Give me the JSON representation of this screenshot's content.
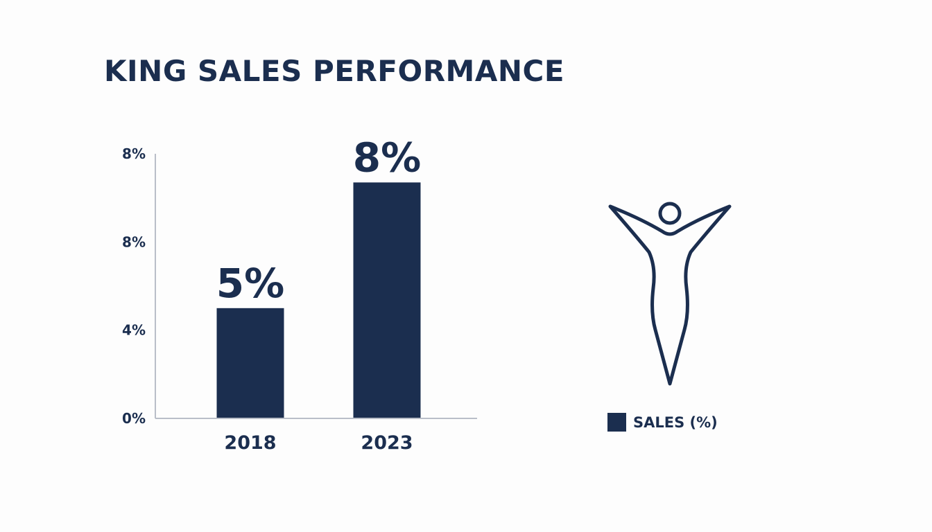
{
  "chart_data": {
    "type": "bar",
    "title": "KING SALES PERFORMANCE",
    "categories": [
      "2018",
      "2023"
    ],
    "series": [
      {
        "name": "SALES (%)",
        "values": [
          5,
          8
        ],
        "data_labels": [
          "5%",
          "8%"
        ],
        "color": "#1b2e4f"
      }
    ],
    "y_tick_labels": [
      "0%",
      "4%",
      "8%",
      "8%"
    ],
    "ylim": [
      0,
      12
    ],
    "xlabel": "",
    "ylabel": "",
    "grid": false,
    "legend_position": "right"
  },
  "legend": {
    "label": "SALES (%)"
  },
  "decoration": {
    "icon": "person-raised-arms-icon"
  },
  "colors": {
    "bar": "#1b2e4f",
    "axis": "#b9bec8",
    "text": "#1b2e4f"
  }
}
